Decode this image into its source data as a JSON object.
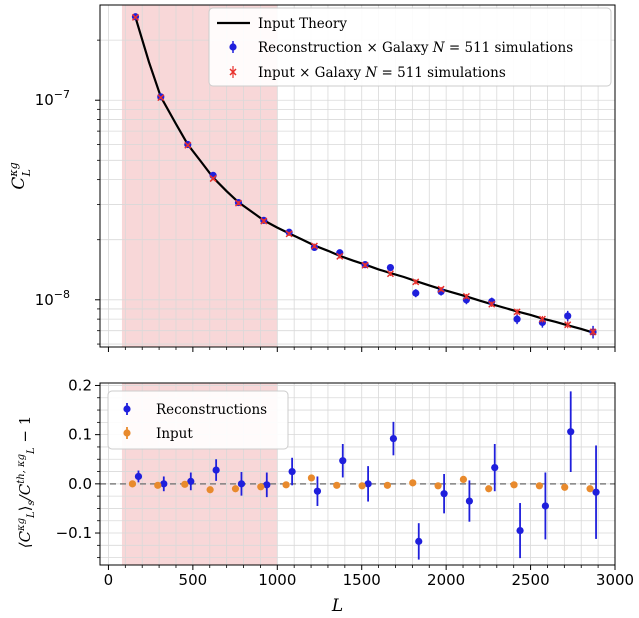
{
  "colors": {
    "theory": "#000000",
    "reconstruction": "#1f1fdc",
    "input_cross": "#e8312d",
    "input_ratio": "#e88a2d",
    "shade": "#f8d7d8",
    "grid": "#d9d9d9",
    "zero_line": "#808080"
  },
  "chart_data": [
    {
      "type": "scatter",
      "yscale": "log",
      "xlim": [
        -50,
        3000
      ],
      "ylim": [
        5.8e-09,
        3e-07
      ],
      "grid": true,
      "legend_position": "top-right",
      "shaded_x_range": [
        80,
        1000
      ],
      "yticks": [
        {
          "value": 1e-07,
          "label": "10",
          "sup": "−7"
        },
        {
          "value": 1e-08,
          "label": "10",
          "sup": "−8"
        }
      ],
      "ylabel_main": "C",
      "ylabel_sup": "κg",
      "ylabel_sub": "L",
      "series": [
        {
          "name": "Input Theory",
          "style": "line",
          "x": [
            160,
            240,
            310,
            400,
            470,
            550,
            620,
            700,
            770,
            860,
            920,
            1000,
            1070,
            1150,
            1220,
            1300,
            1370,
            1450,
            1520,
            1600,
            1670,
            1750,
            1820,
            1900,
            1970,
            2050,
            2120,
            2200,
            2270,
            2350,
            2420,
            2500,
            2570,
            2650,
            2720,
            2800,
            2870
          ],
          "y": [
            2.6e-07,
            1.55e-07,
            1.04e-07,
            7.6e-08,
            6e-08,
            4.9e-08,
            4.1e-08,
            3.5e-08,
            3.08e-08,
            2.72e-08,
            2.5e-08,
            2.3e-08,
            2.15e-08,
            2e-08,
            1.87e-08,
            1.76e-08,
            1.66e-08,
            1.57e-08,
            1.5e-08,
            1.42e-08,
            1.36e-08,
            1.3e-08,
            1.24e-08,
            1.18e-08,
            1.13e-08,
            1.08e-08,
            1.04e-08,
            9.9e-09,
            9.5e-09,
            9.1e-09,
            8.75e-09,
            8.4e-09,
            8.05e-09,
            7.75e-09,
            7.45e-09,
            7.15e-09,
            6.85e-09
          ]
        },
        {
          "name": "Reconstruction × Galaxy",
          "style": "errorbar-point",
          "x": [
            160,
            310,
            470,
            620,
            770,
            920,
            1070,
            1220,
            1370,
            1520,
            1670,
            1820,
            1970,
            2120,
            2270,
            2420,
            2570,
            2720,
            2870
          ],
          "y": [
            2.62e-07,
            1.04e-07,
            6e-08,
            4.2e-08,
            3.07e-08,
            2.5e-08,
            2.18e-08,
            1.83e-08,
            1.72e-08,
            1.5e-08,
            1.45e-08,
            1.08e-08,
            1.1e-08,
            1e-08,
            9.8e-09,
            8e-09,
            7.7e-09,
            8.3e-09,
            6.9e-09
          ],
          "yerr": [
            2e-09,
            1.5e-09,
            1e-09,
            1e-09,
            8e-10,
            7e-10,
            7e-10,
            6e-10,
            6e-10,
            5e-10,
            5e-10,
            5e-10,
            5e-10,
            5e-10,
            4.5e-10,
            4.5e-10,
            4.5e-10,
            5e-10,
            5e-10
          ]
        },
        {
          "name": "Input × Galaxy",
          "style": "errorbar-x",
          "x": [
            160,
            310,
            470,
            620,
            770,
            920,
            1070,
            1220,
            1370,
            1520,
            1670,
            1820,
            1970,
            2120,
            2270,
            2420,
            2570,
            2720,
            2870
          ],
          "y": [
            2.6e-07,
            1.03e-07,
            5.95e-08,
            4.05e-08,
            3.05e-08,
            2.48e-08,
            2.14e-08,
            1.86e-08,
            1.65e-08,
            1.49e-08,
            1.35e-08,
            1.23e-08,
            1.13e-08,
            1.04e-08,
            9.5e-09,
            8.7e-09,
            8e-09,
            7.5e-09,
            6.9e-09
          ],
          "yerr": [
            2e-09,
            1.5e-09,
            1e-09,
            8e-10,
            7e-10,
            6e-10,
            5e-10,
            5e-10,
            4e-10,
            4e-10,
            3.5e-10,
            3.5e-10,
            3e-10,
            3e-10,
            3e-10,
            3e-10,
            3e-10,
            3e-10,
            3e-10
          ]
        }
      ],
      "legend": [
        {
          "kind": "line",
          "text": "Input Theory",
          "series": 0
        },
        {
          "kind": "point",
          "text": "Reconstruction × Galaxy ",
          "sim": "N",
          "simtext": " = 511 simulations",
          "series": 1
        },
        {
          "kind": "cross",
          "text": "Input × Galaxy ",
          "sim": "N",
          "simtext": " = 511 simulations",
          "series": 2
        }
      ]
    },
    {
      "type": "scatter",
      "xlim": [
        -50,
        3000
      ],
      "ylim": [
        -0.165,
        0.205
      ],
      "grid": true,
      "legend_position": "top-left",
      "shaded_x_range": [
        80,
        1000
      ],
      "xlabel": "L",
      "xticks": [
        0,
        500,
        1000,
        1500,
        2000,
        2500,
        3000
      ],
      "yticks": [
        -0.1,
        0.0,
        0.1,
        0.2
      ],
      "ytick_labels": [
        "−0.1",
        "0.0",
        "0.1",
        "0.2"
      ],
      "ylabel_text": "⟨C_L^κg⟩_s / C_L^th,κg − 1",
      "series": [
        {
          "name": "Reconstructions",
          "x": [
            160,
            310,
            470,
            620,
            770,
            920,
            1070,
            1220,
            1370,
            1520,
            1670,
            1820,
            1970,
            2120,
            2270,
            2420,
            2570,
            2720,
            2870
          ],
          "y": [
            0.015,
            0.0,
            0.005,
            0.028,
            0.0,
            -0.002,
            0.025,
            -0.015,
            0.047,
            0.0,
            0.092,
            -0.117,
            -0.02,
            -0.035,
            0.033,
            -0.095,
            -0.045,
            0.106,
            -0.017
          ],
          "yerr": [
            0.012,
            0.015,
            0.018,
            0.022,
            0.024,
            0.025,
            0.028,
            0.03,
            0.034,
            0.036,
            0.034,
            0.037,
            0.04,
            0.042,
            0.048,
            0.056,
            0.068,
            0.082,
            0.095
          ]
        },
        {
          "name": "Input",
          "x": [
            160,
            310,
            470,
            620,
            770,
            920,
            1070,
            1220,
            1370,
            1520,
            1670,
            1820,
            1970,
            2120,
            2270,
            2420,
            2570,
            2720,
            2870
          ],
          "y": [
            0.0,
            -0.003,
            -0.001,
            -0.012,
            -0.01,
            -0.006,
            -0.002,
            0.012,
            -0.003,
            -0.004,
            -0.003,
            0.002,
            -0.004,
            0.009,
            -0.01,
            -0.002,
            -0.004,
            -0.007,
            -0.01
          ],
          "yerr": [
            0.002,
            0.002,
            0.002,
            0.003,
            0.003,
            0.003,
            0.003,
            0.003,
            0.003,
            0.003,
            0.003,
            0.003,
            0.003,
            0.003,
            0.003,
            0.003,
            0.003,
            0.003,
            0.003
          ]
        }
      ],
      "legend": [
        {
          "kind": "point",
          "text": "Reconstructions",
          "series": 0
        },
        {
          "kind": "point",
          "text": "Input",
          "series": 1
        }
      ]
    }
  ]
}
